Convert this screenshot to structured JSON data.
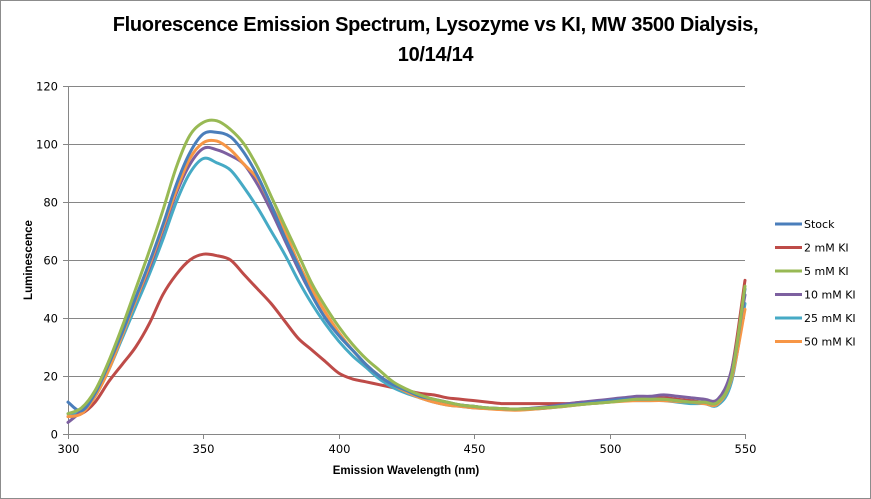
{
  "chart_data": {
    "type": "line",
    "title_lines": [
      "Fluorescence Emission Spectrum, Lysozyme vs KI,  MW 3500 Dialysis,",
      "10/14/14"
    ],
    "xlabel": "Emission Wavelength (nm)",
    "ylabel": "Luminescence",
    "xlim": [
      300,
      550
    ],
    "ylim": [
      0,
      120
    ],
    "x_ticks": [
      300,
      350,
      400,
      450,
      500,
      550
    ],
    "y_ticks": [
      0,
      20,
      40,
      60,
      80,
      100,
      120
    ],
    "grid": "horizontal",
    "legend_position": "right",
    "x": [
      300,
      305,
      310,
      315,
      320,
      325,
      330,
      335,
      340,
      345,
      350,
      355,
      360,
      365,
      370,
      375,
      380,
      385,
      390,
      395,
      400,
      405,
      410,
      415,
      420,
      425,
      430,
      435,
      440,
      445,
      450,
      455,
      460,
      465,
      470,
      475,
      480,
      485,
      490,
      495,
      500,
      505,
      510,
      515,
      520,
      525,
      530,
      535,
      540,
      545,
      550
    ],
    "series": [
      {
        "name": "Stock",
        "color": "#4a7ebb",
        "values": [
          11,
          8,
          14,
          24,
          35,
          47,
          59,
          72,
          86,
          97,
          103.5,
          104,
          102.5,
          97,
          89,
          79,
          68,
          58,
          48,
          40,
          34,
          29,
          24,
          20,
          17,
          15,
          13,
          12,
          11,
          10,
          9.5,
          9,
          8.8,
          8.6,
          8.8,
          9,
          9.5,
          10,
          10.5,
          11,
          11.5,
          12,
          12,
          12,
          12,
          11.5,
          11,
          11,
          11,
          20,
          50
        ]
      },
      {
        "name": "2 mM KI",
        "color": "#be4b48",
        "values": [
          6,
          7,
          11,
          18,
          24,
          30,
          38,
          48,
          55,
          60,
          62,
          61.5,
          60,
          55,
          50,
          45,
          39,
          33,
          29,
          25,
          21,
          19,
          18,
          17,
          16,
          15,
          14,
          13.5,
          12.5,
          12,
          11.5,
          11,
          10.5,
          10.5,
          10.5,
          10.5,
          10.5,
          10.5,
          11,
          11,
          11.5,
          12,
          12,
          12.5,
          12.5,
          12,
          11.5,
          11,
          11,
          22,
          53
        ]
      },
      {
        "name": "5 mM KI",
        "color": "#98b954",
        "values": [
          7,
          9,
          15,
          25,
          37,
          50,
          63,
          77,
          92,
          103,
          107.5,
          108,
          105,
          100,
          92,
          82,
          72,
          62,
          52,
          44,
          37,
          31,
          26,
          22,
          18,
          15.5,
          13.5,
          12,
          11,
          10,
          9.5,
          9,
          8.8,
          8.6,
          8.7,
          9,
          9.3,
          9.8,
          10.2,
          10.6,
          11,
          11.5,
          12,
          12,
          12,
          11.5,
          11,
          11,
          11,
          20,
          51
        ]
      },
      {
        "name": "10 mM KI",
        "color": "#7d60a0",
        "values": [
          4,
          8,
          14,
          24,
          35,
          46,
          57,
          70,
          83,
          93,
          98.5,
          98,
          96,
          93,
          86,
          77,
          67,
          57,
          48,
          40,
          34,
          29,
          24,
          20,
          17,
          15,
          13,
          11.5,
          10.5,
          10,
          9.5,
          9,
          8.8,
          8.6,
          8.8,
          9.2,
          9.8,
          10.5,
          11,
          11.5,
          12,
          12.5,
          13,
          13,
          13.5,
          13,
          12.5,
          12,
          12,
          22,
          48
        ]
      },
      {
        "name": "25 mM KI",
        "color": "#46aac5",
        "values": [
          7,
          8,
          13,
          22,
          33,
          44,
          55,
          67,
          80,
          90,
          95,
          93.5,
          91,
          85,
          78,
          70,
          62,
          53,
          45,
          38,
          32,
          27,
          23,
          19,
          16,
          14,
          12.5,
          11,
          10,
          9.5,
          9,
          8.8,
          8.5,
          8.3,
          8.5,
          8.8,
          9.2,
          9.7,
          10.2,
          10.6,
          11,
          11.5,
          11.5,
          11.5,
          11.5,
          11,
          10.5,
          10.5,
          10,
          18,
          45
        ]
      },
      {
        "name": "50 mM KI",
        "color": "#f79646",
        "values": [
          6,
          7,
          13,
          22,
          34,
          46,
          58,
          71,
          84,
          95,
          100.5,
          101,
          98,
          93,
          88,
          79,
          70,
          59,
          50,
          42,
          35,
          29,
          24,
          20,
          17,
          14.5,
          12.5,
          11,
          10,
          9.5,
          9,
          8.7,
          8.4,
          8.2,
          8.4,
          8.8,
          9.2,
          9.7,
          10.2,
          10.6,
          11,
          11.3,
          11.5,
          11.5,
          11.5,
          11.2,
          11,
          10.5,
          10.5,
          19,
          43
        ]
      }
    ]
  }
}
